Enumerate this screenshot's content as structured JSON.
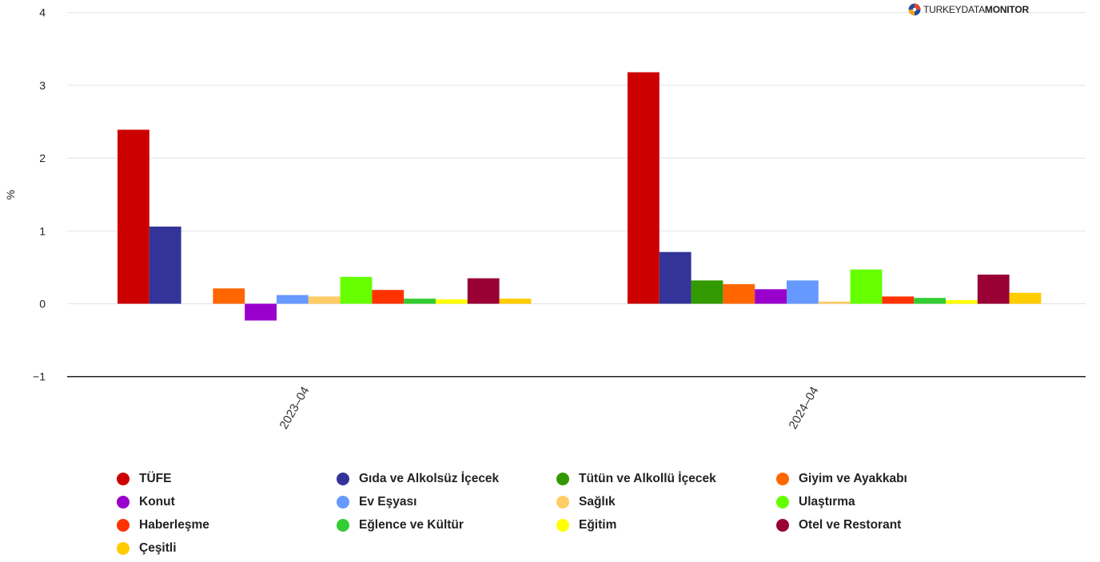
{
  "brand": {
    "part1": "TURKEYDATA",
    "part2": "MONITOR"
  },
  "chart_data": {
    "type": "bar",
    "ylabel": "%",
    "xlabel": "",
    "ylim": [
      -1,
      4
    ],
    "yticks": [
      -1,
      0,
      1,
      2,
      3,
      4
    ],
    "ytick_labels": [
      "−1",
      "0",
      "1",
      "2",
      "3",
      "4"
    ],
    "grid": true,
    "legend_position": "bottom",
    "categories": [
      "2023–04",
      "2024–04"
    ],
    "series": [
      {
        "name": "TÜFE",
        "color": "#cc0000",
        "values": [
          2.39,
          3.18
        ]
      },
      {
        "name": "Gıda ve Alkolsüz İçecek",
        "color": "#333399",
        "values": [
          1.06,
          0.71
        ]
      },
      {
        "name": "Tütün ve Alkollü İçecek",
        "color": "#339900",
        "values": [
          0.0,
          0.32
        ]
      },
      {
        "name": "Giyim ve Ayakkabı",
        "color": "#ff6600",
        "values": [
          0.21,
          0.27
        ]
      },
      {
        "name": "Konut",
        "color": "#9900cc",
        "values": [
          -0.23,
          0.2
        ]
      },
      {
        "name": "Ev Eşyası",
        "color": "#6699ff",
        "values": [
          0.12,
          0.32
        ]
      },
      {
        "name": "Sağlık",
        "color": "#ffcc66",
        "values": [
          0.1,
          0.03
        ]
      },
      {
        "name": "Ulaştırma",
        "color": "#66ff00",
        "values": [
          0.37,
          0.47
        ]
      },
      {
        "name": "Haberleşme",
        "color": "#ff3300",
        "values": [
          0.19,
          0.1
        ]
      },
      {
        "name": "Eğlence ve Kültür",
        "color": "#33cc33",
        "values": [
          0.07,
          0.08
        ]
      },
      {
        "name": "Eğitim",
        "color": "#ffff00",
        "values": [
          0.06,
          0.05
        ]
      },
      {
        "name": "Otel ve Restorant",
        "color": "#990033",
        "values": [
          0.35,
          0.4
        ]
      },
      {
        "name": "Çeşitli",
        "color": "#ffcc00",
        "values": [
          0.07,
          0.15
        ]
      }
    ]
  }
}
